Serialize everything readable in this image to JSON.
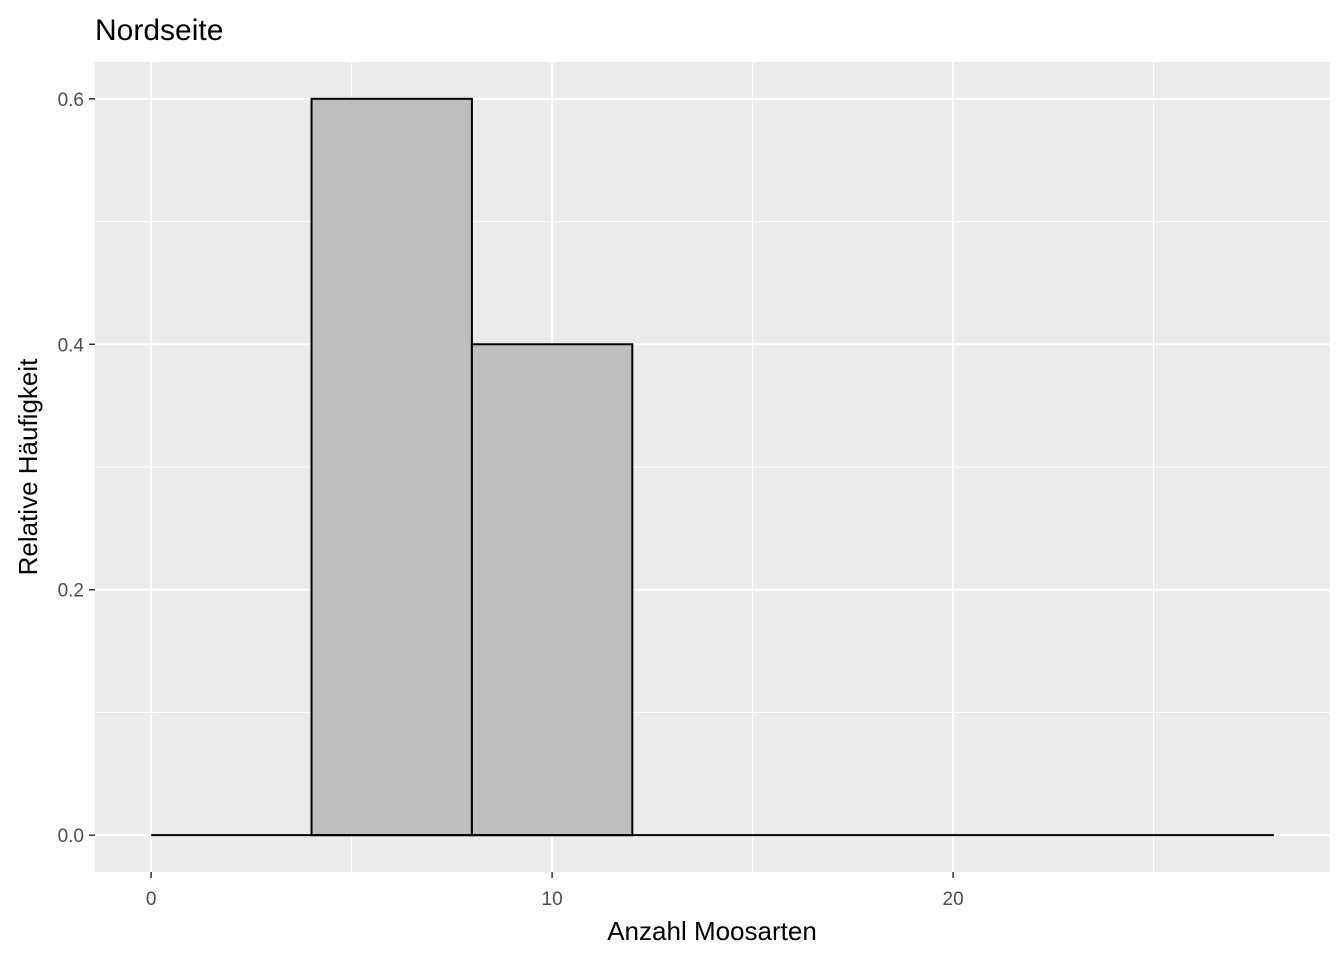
{
  "chart_data": {
    "type": "bar",
    "title": "Nordseite",
    "xlabel": "Anzahl Moosarten",
    "ylabel": "Relative Häufigkeit",
    "bins": [
      {
        "x0": 0,
        "x1": 4,
        "value": 0.0
      },
      {
        "x0": 4,
        "x1": 8,
        "value": 0.6
      },
      {
        "x0": 8,
        "x1": 12,
        "value": 0.4
      },
      {
        "x0": 12,
        "x1": 16,
        "value": 0.0
      },
      {
        "x0": 16,
        "x1": 20,
        "value": 0.0
      },
      {
        "x0": 20,
        "x1": 24,
        "value": 0.0
      },
      {
        "x0": 24,
        "x1": 28,
        "value": 0.0
      }
    ],
    "x_ticks": [
      0,
      10,
      20
    ],
    "x_tick_labels": [
      "0",
      "10",
      "20"
    ],
    "y_ticks": [
      0.0,
      0.2,
      0.4,
      0.6
    ],
    "y_tick_labels": [
      "0.0",
      "0.2",
      "0.4",
      "0.6"
    ],
    "xlim": [
      -1.4,
      29.4
    ],
    "ylim": [
      -0.03,
      0.63
    ],
    "grid": true,
    "legend": "none",
    "colors": {
      "panel_background": "#ebebeb",
      "grid_line": "#ffffff",
      "bar_fill": "#bebebe",
      "bar_outline": "#000000",
      "tick_mark": "#333333"
    }
  }
}
